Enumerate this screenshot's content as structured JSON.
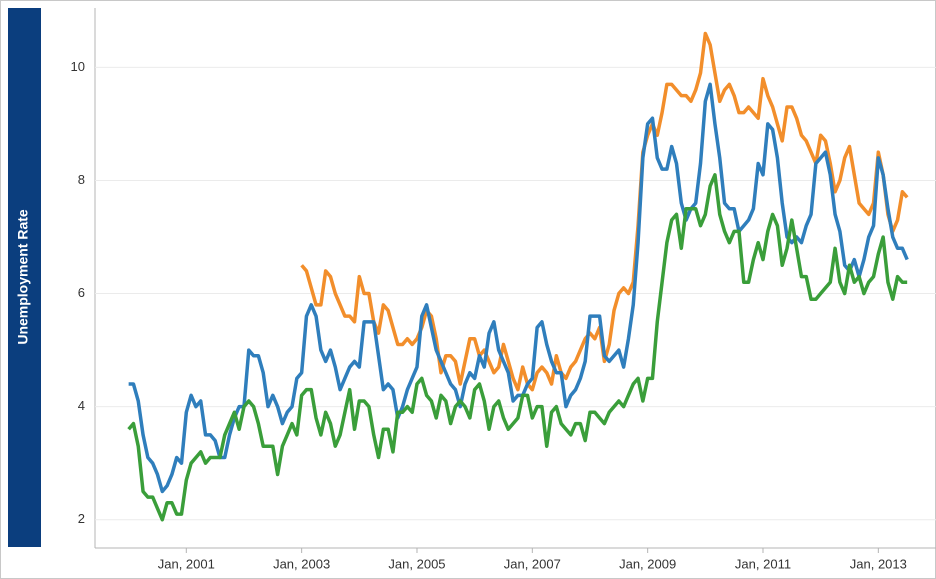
{
  "chart_data": {
    "type": "line",
    "y_label": "Unemployment Rate",
    "x": [
      "2000-01",
      "2000-02",
      "2000-03",
      "2000-04",
      "2000-05",
      "2000-06",
      "2000-07",
      "2000-08",
      "2000-09",
      "2000-10",
      "2000-11",
      "2000-12",
      "2001-01",
      "2001-02",
      "2001-03",
      "2001-04",
      "2001-05",
      "2001-06",
      "2001-07",
      "2001-08",
      "2001-09",
      "2001-10",
      "2001-11",
      "2001-12",
      "2002-01",
      "2002-02",
      "2002-03",
      "2002-04",
      "2002-05",
      "2002-06",
      "2002-07",
      "2002-08",
      "2002-09",
      "2002-10",
      "2002-11",
      "2002-12",
      "2003-01",
      "2003-02",
      "2003-03",
      "2003-04",
      "2003-05",
      "2003-06",
      "2003-07",
      "2003-08",
      "2003-09",
      "2003-10",
      "2003-11",
      "2003-12",
      "2004-01",
      "2004-02",
      "2004-03",
      "2004-04",
      "2004-05",
      "2004-06",
      "2004-07",
      "2004-08",
      "2004-09",
      "2004-10",
      "2004-11",
      "2004-12",
      "2005-01",
      "2005-02",
      "2005-03",
      "2005-04",
      "2005-05",
      "2005-06",
      "2005-07",
      "2005-08",
      "2005-09",
      "2005-10",
      "2005-11",
      "2005-12",
      "2006-01",
      "2006-02",
      "2006-03",
      "2006-04",
      "2006-05",
      "2006-06",
      "2006-07",
      "2006-08",
      "2006-09",
      "2006-10",
      "2006-11",
      "2006-12",
      "2007-01",
      "2007-02",
      "2007-03",
      "2007-04",
      "2007-05",
      "2007-06",
      "2007-07",
      "2007-08",
      "2007-09",
      "2007-10",
      "2007-11",
      "2007-12",
      "2008-01",
      "2008-02",
      "2008-03",
      "2008-04",
      "2008-05",
      "2008-06",
      "2008-07",
      "2008-08",
      "2008-09",
      "2008-10",
      "2008-11",
      "2008-12",
      "2009-01",
      "2009-02",
      "2009-03",
      "2009-04",
      "2009-05",
      "2009-06",
      "2009-07",
      "2009-08",
      "2009-09",
      "2009-10",
      "2009-11",
      "2009-12",
      "2010-01",
      "2010-02",
      "2010-03",
      "2010-04",
      "2010-05",
      "2010-06",
      "2010-07",
      "2010-08",
      "2010-09",
      "2010-10",
      "2010-11",
      "2010-12",
      "2011-01",
      "2011-02",
      "2011-03",
      "2011-04",
      "2011-05",
      "2011-06",
      "2011-07",
      "2011-08",
      "2011-09",
      "2011-10",
      "2011-11",
      "2011-12",
      "2012-01",
      "2012-02",
      "2012-03",
      "2012-04",
      "2012-05",
      "2012-06",
      "2012-07",
      "2012-08",
      "2012-09",
      "2012-10",
      "2012-11",
      "2012-12",
      "2013-01",
      "2013-02",
      "2013-03",
      "2013-04",
      "2013-05",
      "2013-06",
      "2013-07"
    ],
    "series": [
      {
        "color": "#f28e2b",
        "values": [
          null,
          null,
          null,
          null,
          null,
          null,
          null,
          null,
          null,
          null,
          null,
          null,
          null,
          null,
          null,
          null,
          null,
          null,
          null,
          null,
          null,
          null,
          null,
          null,
          null,
          null,
          null,
          null,
          null,
          null,
          null,
          null,
          null,
          null,
          null,
          null,
          6.5,
          6.4,
          6.1,
          5.8,
          5.8,
          6.4,
          6.3,
          6.0,
          5.8,
          5.6,
          5.6,
          5.5,
          6.3,
          6.0,
          6.0,
          5.5,
          5.3,
          5.8,
          5.7,
          5.4,
          5.1,
          5.1,
          5.2,
          5.1,
          5.2,
          5.4,
          5.7,
          5.6,
          5.2,
          4.6,
          4.9,
          4.9,
          4.8,
          4.4,
          4.8,
          5.2,
          5.2,
          4.9,
          5.0,
          4.8,
          4.6,
          4.7,
          5.1,
          4.8,
          4.5,
          4.3,
          4.7,
          4.4,
          4.3,
          4.6,
          4.7,
          4.6,
          4.4,
          4.9,
          4.6,
          4.5,
          4.7,
          4.8,
          5.0,
          5.2,
          5.3,
          5.2,
          5.4,
          4.8,
          5.1,
          5.7,
          6.0,
          6.1,
          6.0,
          6.2,
          7.2,
          8.5,
          8.8,
          9.0,
          8.8,
          9.2,
          9.7,
          9.7,
          9.6,
          9.5,
          9.5,
          9.4,
          9.6,
          9.9,
          10.6,
          10.4,
          9.9,
          9.4,
          9.6,
          9.7,
          9.5,
          9.2,
          9.2,
          9.3,
          9.2,
          9.1,
          9.8,
          9.5,
          9.3,
          9.0,
          8.7,
          9.3,
          9.3,
          9.1,
          8.8,
          8.7,
          8.5,
          8.3,
          8.8,
          8.7,
          8.3,
          7.8,
          8.0,
          8.4,
          8.6,
          8.1,
          7.6,
          7.5,
          7.4,
          7.6,
          8.5,
          8.1,
          7.4,
          7.1,
          7.3,
          7.8,
          7.7
        ]
      },
      {
        "color": "#2f7ebc",
        "values": [
          4.4,
          4.4,
          4.1,
          3.5,
          3.1,
          3.0,
          2.8,
          2.5,
          2.6,
          2.8,
          3.1,
          3.0,
          3.9,
          4.2,
          4.0,
          4.1,
          3.5,
          3.5,
          3.4,
          3.1,
          3.1,
          3.5,
          3.8,
          4.0,
          4.0,
          5.0,
          4.9,
          4.9,
          4.6,
          4.0,
          4.2,
          4.0,
          3.7,
          3.9,
          4.0,
          4.5,
          4.6,
          5.6,
          5.8,
          5.6,
          5.0,
          4.8,
          5.0,
          4.7,
          4.3,
          4.5,
          4.7,
          4.8,
          4.7,
          5.5,
          5.5,
          5.5,
          4.9,
          4.3,
          4.4,
          4.3,
          3.8,
          4.0,
          4.3,
          4.5,
          4.7,
          5.6,
          5.8,
          5.4,
          5.0,
          4.8,
          4.6,
          4.4,
          4.3,
          4.0,
          4.4,
          4.6,
          4.5,
          4.9,
          4.7,
          5.3,
          5.5,
          5.0,
          4.8,
          4.6,
          4.1,
          4.2,
          4.2,
          4.4,
          4.5,
          5.4,
          5.5,
          5.1,
          4.8,
          4.6,
          4.6,
          4.0,
          4.2,
          4.3,
          4.5,
          4.8,
          5.6,
          5.6,
          5.6,
          4.9,
          4.8,
          4.9,
          5.0,
          4.7,
          5.2,
          5.8,
          6.9,
          8.4,
          9.0,
          9.1,
          8.4,
          8.2,
          8.2,
          8.6,
          8.3,
          7.6,
          7.3,
          7.5,
          7.6,
          8.3,
          9.4,
          9.7,
          9.0,
          8.4,
          7.6,
          7.5,
          7.5,
          7.1,
          7.2,
          7.3,
          7.5,
          8.3,
          8.1,
          9.0,
          8.9,
          8.4,
          7.6,
          7.0,
          6.9,
          7.0,
          6.9,
          7.2,
          7.4,
          8.3,
          8.4,
          8.5,
          8.1,
          7.4,
          7.1,
          6.5,
          6.4,
          6.6,
          6.3,
          6.6,
          7.0,
          7.2,
          8.4,
          8.1,
          7.5,
          7.0,
          6.8,
          6.8,
          6.6
        ]
      },
      {
        "color": "#3a9e3a",
        "values": [
          3.6,
          3.7,
          3.3,
          2.5,
          2.4,
          2.4,
          2.2,
          2.0,
          2.3,
          2.3,
          2.1,
          2.1,
          2.7,
          3.0,
          3.1,
          3.2,
          3.0,
          3.1,
          3.1,
          3.1,
          3.5,
          3.7,
          3.9,
          3.6,
          4.0,
          4.1,
          4.0,
          3.7,
          3.3,
          3.3,
          3.3,
          2.8,
          3.3,
          3.5,
          3.7,
          3.5,
          4.2,
          4.3,
          4.3,
          3.8,
          3.5,
          3.9,
          3.7,
          3.3,
          3.5,
          3.9,
          4.3,
          3.6,
          4.1,
          4.1,
          4.0,
          3.5,
          3.1,
          3.6,
          3.6,
          3.2,
          3.9,
          3.9,
          4.0,
          3.9,
          4.4,
          4.5,
          4.2,
          4.1,
          3.8,
          4.2,
          4.1,
          3.7,
          4.0,
          4.1,
          4.0,
          3.8,
          4.3,
          4.4,
          4.1,
          3.6,
          4.0,
          4.1,
          3.8,
          3.6,
          3.7,
          3.8,
          4.2,
          4.2,
          3.8,
          4.0,
          4.0,
          3.3,
          3.9,
          4.0,
          3.7,
          3.6,
          3.5,
          3.7,
          3.7,
          3.4,
          3.9,
          3.9,
          3.8,
          3.7,
          3.9,
          4.0,
          4.1,
          4.0,
          4.2,
          4.4,
          4.5,
          4.1,
          4.5,
          4.5,
          5.5,
          6.2,
          6.9,
          7.3,
          7.4,
          6.8,
          7.5,
          7.5,
          7.5,
          7.2,
          7.4,
          7.9,
          8.1,
          7.4,
          7.1,
          6.9,
          7.1,
          7.1,
          6.2,
          6.2,
          6.6,
          6.9,
          6.6,
          7.1,
          7.4,
          7.2,
          6.5,
          6.8,
          7.3,
          6.8,
          6.3,
          6.3,
          5.9,
          5.9,
          6.0,
          6.1,
          6.2,
          6.8,
          6.2,
          6.0,
          6.5,
          6.2,
          6.3,
          6.0,
          6.2,
          6.3,
          6.7,
          7.0,
          6.2,
          5.9,
          6.3,
          6.2,
          6.2
        ]
      }
    ],
    "xlim": [
      "1999-06",
      "2014-01"
    ],
    "xticks": [
      {
        "value": "2001-01",
        "label": "Jan, 2001"
      },
      {
        "value": "2003-01",
        "label": "Jan, 2003"
      },
      {
        "value": "2005-01",
        "label": "Jan, 2005"
      },
      {
        "value": "2007-01",
        "label": "Jan, 2007"
      },
      {
        "value": "2009-01",
        "label": "Jan, 2009"
      },
      {
        "value": "2011-01",
        "label": "Jan, 2011"
      },
      {
        "value": "2013-01",
        "label": "Jan, 2013"
      }
    ],
    "ylim": [
      1.5,
      11.05
    ],
    "yticks": [
      2,
      4,
      6,
      8,
      10
    ],
    "grid": true
  }
}
